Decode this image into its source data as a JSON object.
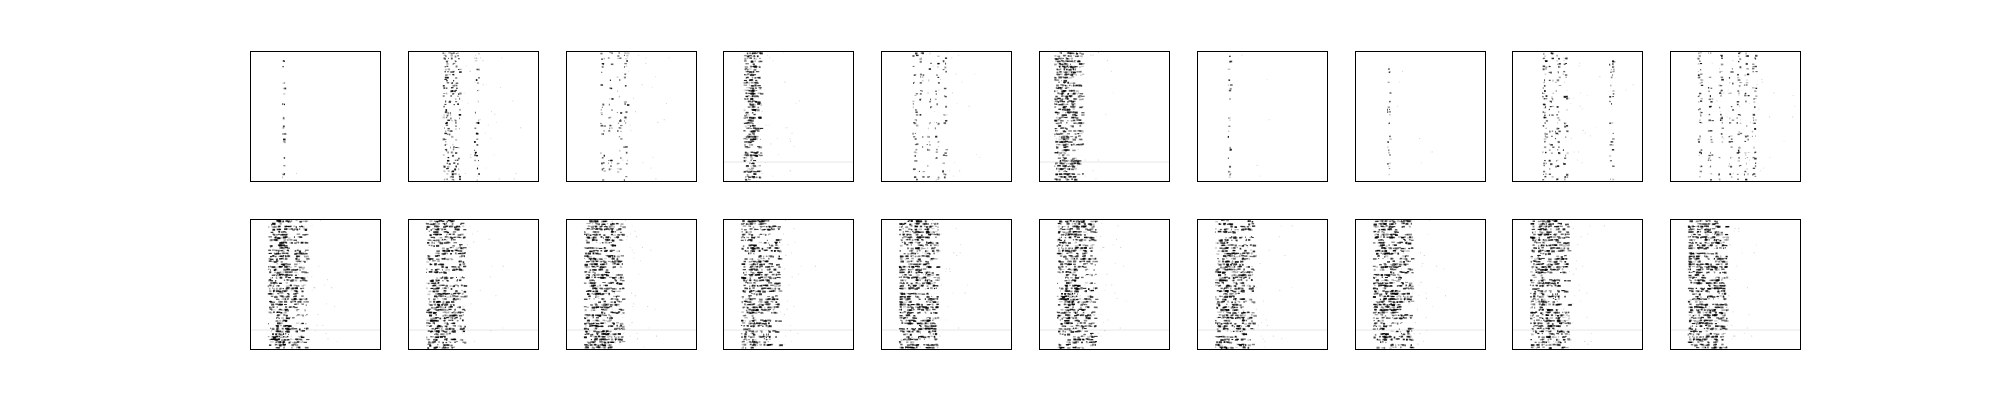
{
  "chart_data": {
    "type": "heatmap",
    "layout": {
      "rows": 2,
      "cols": 10
    },
    "colormap": "gray_r",
    "axes_visible": false,
    "grid": false,
    "title": "",
    "xlabel": "",
    "ylabel": "",
    "panels": [
      {
        "row": 0,
        "col": 0,
        "pattern": "single-column",
        "columns": [
          0.25
        ],
        "density": 0.35,
        "intensity": 0.9,
        "spread": 0.01
      },
      {
        "row": 0,
        "col": 1,
        "pattern": "clustered-columns",
        "columns": [
          0.28,
          0.31,
          0.34,
          0.37,
          0.52
        ],
        "density": 0.75,
        "intensity": 0.9,
        "spread": 0.02
      },
      {
        "row": 0,
        "col": 2,
        "pattern": "clustered-columns",
        "columns": [
          0.27,
          0.33,
          0.4,
          0.45
        ],
        "density": 0.45,
        "intensity": 0.85,
        "spread": 0.015
      },
      {
        "row": 0,
        "col": 3,
        "pattern": "dense-band",
        "columns": [
          0.19,
          0.24
        ],
        "density": 0.9,
        "intensity": 0.8,
        "spread": 0.04
      },
      {
        "row": 0,
        "col": 4,
        "pattern": "clustered-columns",
        "columns": [
          0.25,
          0.3,
          0.36,
          0.42,
          0.48
        ],
        "density": 0.5,
        "intensity": 0.85,
        "spread": 0.015
      },
      {
        "row": 0,
        "col": 5,
        "pattern": "dense-band",
        "columns": [
          0.16,
          0.22,
          0.28
        ],
        "density": 0.9,
        "intensity": 0.8,
        "spread": 0.05
      },
      {
        "row": 0,
        "col": 6,
        "pattern": "single-column",
        "columns": [
          0.24
        ],
        "density": 0.45,
        "intensity": 0.85,
        "spread": 0.01
      },
      {
        "row": 0,
        "col": 7,
        "pattern": "single-column",
        "columns": [
          0.25
        ],
        "density": 0.3,
        "intensity": 0.8,
        "spread": 0.01
      },
      {
        "row": 0,
        "col": 8,
        "pattern": "clustered-columns",
        "columns": [
          0.24,
          0.29,
          0.34,
          0.4,
          0.76
        ],
        "density": 0.55,
        "intensity": 0.9,
        "spread": 0.015
      },
      {
        "row": 0,
        "col": 9,
        "pattern": "clustered-columns",
        "columns": [
          0.22,
          0.3,
          0.38,
          0.46,
          0.52,
          0.58,
          0.64
        ],
        "density": 0.5,
        "intensity": 0.85,
        "spread": 0.015
      },
      {
        "row": 1,
        "col": 0,
        "pattern": "dense-band",
        "columns": [
          0.18,
          0.24,
          0.3,
          0.38
        ],
        "density": 0.85,
        "intensity": 0.85,
        "spread": 0.05
      },
      {
        "row": 1,
        "col": 1,
        "pattern": "dense-band",
        "columns": [
          0.18,
          0.24,
          0.3,
          0.38
        ],
        "density": 0.85,
        "intensity": 0.85,
        "spread": 0.05
      },
      {
        "row": 1,
        "col": 2,
        "pattern": "dense-band",
        "columns": [
          0.18,
          0.24,
          0.3,
          0.38
        ],
        "density": 0.85,
        "intensity": 0.85,
        "spread": 0.05
      },
      {
        "row": 1,
        "col": 3,
        "pattern": "dense-band",
        "columns": [
          0.18,
          0.24,
          0.3,
          0.38
        ],
        "density": 0.85,
        "intensity": 0.85,
        "spread": 0.05
      },
      {
        "row": 1,
        "col": 4,
        "pattern": "dense-band",
        "columns": [
          0.18,
          0.24,
          0.3,
          0.38
        ],
        "density": 0.85,
        "intensity": 0.85,
        "spread": 0.05
      },
      {
        "row": 1,
        "col": 5,
        "pattern": "dense-band",
        "columns": [
          0.18,
          0.24,
          0.3,
          0.38
        ],
        "density": 0.85,
        "intensity": 0.85,
        "spread": 0.05
      },
      {
        "row": 1,
        "col": 6,
        "pattern": "dense-band",
        "columns": [
          0.18,
          0.24,
          0.3,
          0.38
        ],
        "density": 0.85,
        "intensity": 0.85,
        "spread": 0.05
      },
      {
        "row": 1,
        "col": 7,
        "pattern": "dense-band",
        "columns": [
          0.18,
          0.24,
          0.3,
          0.38
        ],
        "density": 0.85,
        "intensity": 0.85,
        "spread": 0.05
      },
      {
        "row": 1,
        "col": 8,
        "pattern": "dense-band",
        "columns": [
          0.18,
          0.24,
          0.3,
          0.38
        ],
        "density": 0.85,
        "intensity": 0.85,
        "spread": 0.05
      },
      {
        "row": 1,
        "col": 9,
        "pattern": "dense-band",
        "columns": [
          0.18,
          0.24,
          0.3,
          0.38
        ],
        "density": 0.85,
        "intensity": 0.85,
        "spread": 0.05
      }
    ]
  }
}
